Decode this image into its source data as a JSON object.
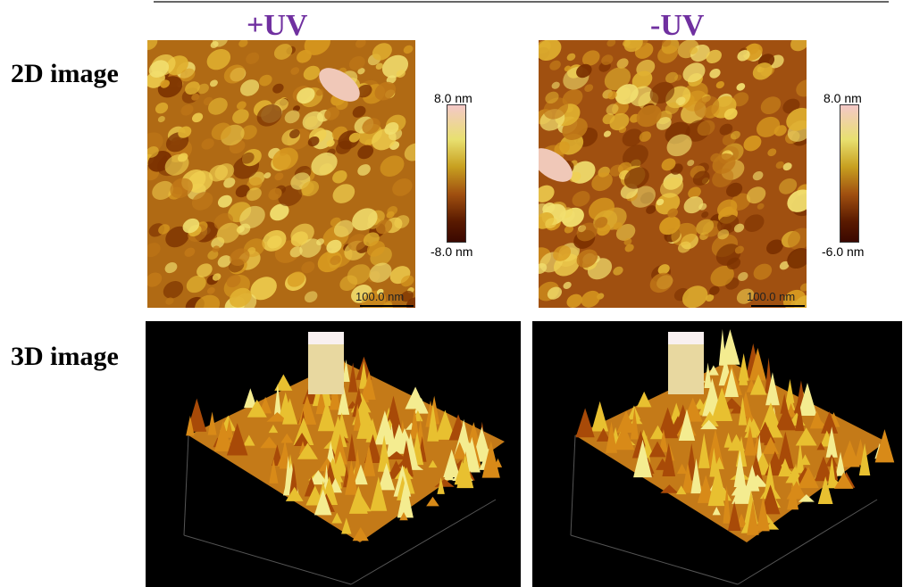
{
  "header": {
    "left": "+UV",
    "right": "-UV"
  },
  "rows": [
    "2D image",
    "3D image"
  ],
  "panels": [
    {
      "colorbar_max": "8.0 nm",
      "colorbar_min": "-8.0 nm",
      "scale_bar": "100.0 nm"
    },
    {
      "colorbar_max": "8.0 nm",
      "colorbar_min": "-6.0 nm",
      "scale_bar": "100.0 nm"
    }
  ]
}
